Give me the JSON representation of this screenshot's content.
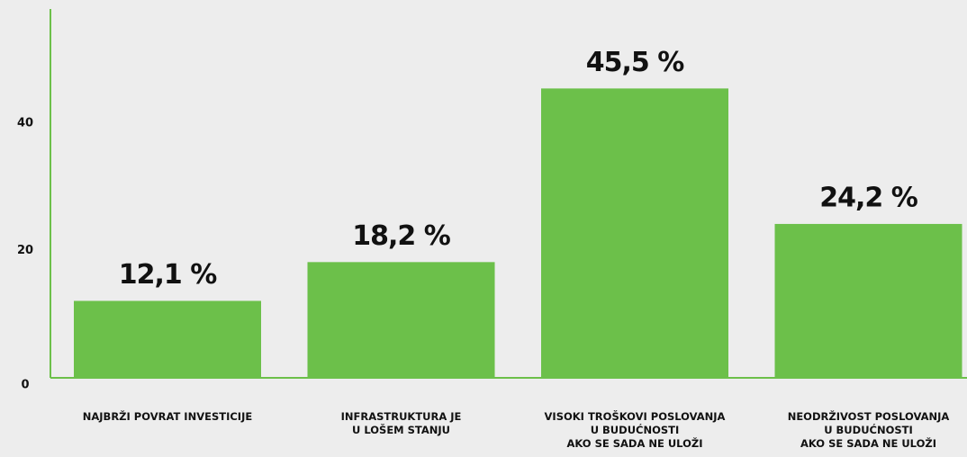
{
  "chart_data": {
    "type": "bar",
    "categories": [
      "NAJBRŽI POVRAT INVESTICIJE",
      "INFRASTRUKTURA JE\nU LOŠEM STANJU",
      "VISOKI TROŠKOVI POSLOVANJA\nU BUDUĆNOSTI\nAKO SE SADA NE ULOŽI",
      "NEODRŽIVOST POSLOVANJA\nU BUDUĆNOSTI\nAKO SE SADA NE ULOŽI"
    ],
    "values": [
      12.1,
      18.2,
      45.5,
      24.2
    ],
    "value_labels": [
      "12,1 %",
      "18,2 %",
      "45,5 %",
      "24,2 %"
    ],
    "color": "#6cc04a",
    "ylim": [
      0,
      58
    ],
    "yticks": [
      0,
      20,
      40
    ],
    "grid": false
  }
}
